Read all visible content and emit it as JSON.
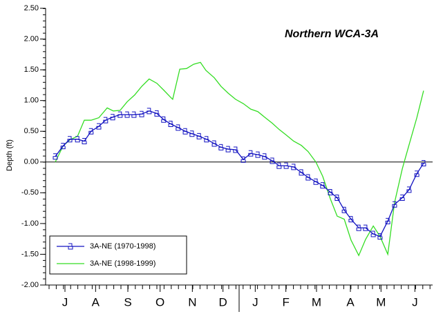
{
  "chart_data": {
    "type": "line",
    "title": "Northern WCA-3A",
    "y_label": "Depth (ft)",
    "xlim": [
      0,
      12
    ],
    "xticks": [
      {
        "value": 0.6,
        "label": "J"
      },
      {
        "value": 1.55,
        "label": "A"
      },
      {
        "value": 2.55,
        "label": "S"
      },
      {
        "value": 3.55,
        "label": "O"
      },
      {
        "value": 4.55,
        "label": "N"
      },
      {
        "value": 5.5,
        "label": "D"
      },
      {
        "value": 6.5,
        "label": "J"
      },
      {
        "value": 7.45,
        "label": "F"
      },
      {
        "value": 8.4,
        "label": "M"
      },
      {
        "value": 9.45,
        "label": "A"
      },
      {
        "value": 10.4,
        "label": "M"
      },
      {
        "value": 11.45,
        "label": "J"
      }
    ],
    "ylim": [
      -2,
      2.5
    ],
    "yticks": [
      {
        "value": -2,
        "label": "-2.00"
      },
      {
        "value": -1.5,
        "label": "-1.50"
      },
      {
        "value": -1,
        "label": "-1.00"
      },
      {
        "value": -0.5,
        "label": "-0.50"
      },
      {
        "value": 0,
        "label": "0.00"
      },
      {
        "value": 0.5,
        "label": "0.50"
      },
      {
        "value": 1,
        "label": "1.00"
      },
      {
        "value": 1.5,
        "label": "1.50"
      },
      {
        "value": 2,
        "label": "2.00"
      },
      {
        "value": 2.5,
        "label": "2.50"
      }
    ],
    "zero_line": true,
    "legend": "lower left",
    "series": [
      {
        "name": "3A-NE (1970-1998)",
        "color": "#1010c0",
        "marker": true,
        "x": [
          0.3,
          0.54,
          0.75,
          0.99,
          1.2,
          1.41,
          1.65,
          1.86,
          2.08,
          2.31,
          2.53,
          2.74,
          2.98,
          3.21,
          3.45,
          3.66,
          3.88,
          4.11,
          4.33,
          4.54,
          4.76,
          4.99,
          5.23,
          5.44,
          5.66,
          5.89,
          6.13,
          6.36,
          6.58,
          6.79,
          7.03,
          7.24,
          7.46,
          7.69,
          7.93,
          8.14,
          8.38,
          8.59,
          8.83,
          9.04,
          9.26,
          9.47,
          9.71,
          9.92,
          10.16,
          10.37,
          10.61,
          10.82,
          11.06,
          11.27,
          11.51,
          11.72
        ],
        "values": [
          0.09,
          0.26,
          0.37,
          0.37,
          0.34,
          0.5,
          0.58,
          0.68,
          0.73,
          0.77,
          0.77,
          0.77,
          0.78,
          0.83,
          0.79,
          0.69,
          0.62,
          0.56,
          0.5,
          0.46,
          0.42,
          0.37,
          0.3,
          0.24,
          0.21,
          0.2,
          0.04,
          0.14,
          0.12,
          0.09,
          0.02,
          -0.06,
          -0.06,
          -0.08,
          -0.17,
          -0.25,
          -0.32,
          -0.38,
          -0.49,
          -0.58,
          -0.78,
          -0.93,
          -1.07,
          -1.07,
          -1.17,
          -1.21,
          -0.96,
          -0.69,
          -0.58,
          -0.45,
          -0.19,
          -0.02
        ]
      },
      {
        "name": "3A-NE (1998-1999)",
        "color": "#33dd22",
        "marker": false,
        "x": [
          0.3,
          0.54,
          0.75,
          0.99,
          1.2,
          1.41,
          1.65,
          1.91,
          2.1,
          2.31,
          2.53,
          2.76,
          2.98,
          3.21,
          3.45,
          3.66,
          3.88,
          3.94,
          4.16,
          4.37,
          4.59,
          4.8,
          4.97,
          5.23,
          5.44,
          5.66,
          5.89,
          6.13,
          6.36,
          6.58,
          6.79,
          7.03,
          7.24,
          7.46,
          7.69,
          7.93,
          8.14,
          8.38,
          8.59,
          8.83,
          9.04,
          9.26,
          9.47,
          9.71,
          9.92,
          10.16,
          10.37,
          10.61,
          10.82,
          11.06,
          11.27,
          11.51,
          11.72
        ],
        "values": [
          0.0,
          0.26,
          0.36,
          0.42,
          0.68,
          0.68,
          0.72,
          0.88,
          0.83,
          0.84,
          0.98,
          1.09,
          1.23,
          1.35,
          1.28,
          1.17,
          1.05,
          1.02,
          1.51,
          1.52,
          1.59,
          1.62,
          1.49,
          1.37,
          1.23,
          1.12,
          1.02,
          0.95,
          0.86,
          0.82,
          0.73,
          0.63,
          0.53,
          0.44,
          0.34,
          0.27,
          0.17,
          0.0,
          -0.23,
          -0.6,
          -0.88,
          -0.93,
          -1.27,
          -1.52,
          -1.26,
          -1.04,
          -1.21,
          -1.5,
          -0.66,
          -0.11,
          0.28,
          0.72,
          1.16
        ]
      }
    ]
  }
}
